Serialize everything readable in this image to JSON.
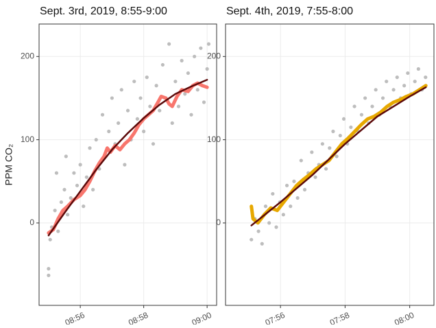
{
  "chart_data": [
    {
      "type": "scatter",
      "title": "Sept. 3rd, 2019, 8:55-9:00",
      "ylabel": "PPM CO₂",
      "xlim": [
        54.7,
        60.3
      ],
      "ylim": [
        -99,
        239
      ],
      "yticks": [
        0,
        100,
        200
      ],
      "xticks": [
        {
          "value": 56,
          "label": "08:56"
        },
        {
          "value": 58,
          "label": "08:58"
        },
        {
          "value": 60,
          "label": "09:00"
        }
      ],
      "grid": true,
      "series": [
        {
          "kind": "points",
          "color": "#bdbdbd",
          "x": [
            55.0,
            55.0,
            55.05,
            55.1,
            55.2,
            55.25,
            55.3,
            55.4,
            55.5,
            55.55,
            55.6,
            55.7,
            55.8,
            55.9,
            56.0,
            56.1,
            56.2,
            56.3,
            56.4,
            56.5,
            56.6,
            56.7,
            56.8,
            56.9,
            57.0,
            57.1,
            57.2,
            57.3,
            57.4,
            57.5,
            57.6,
            57.7,
            57.8,
            57.9,
            58.0,
            58.1,
            58.2,
            58.3,
            58.4,
            58.5,
            58.6,
            58.7,
            58.8,
            58.9,
            59.0,
            59.1,
            59.2,
            59.3,
            59.4,
            59.5,
            59.6,
            59.7,
            59.8,
            59.9,
            60.0,
            60.05
          ],
          "values": [
            -55,
            -63,
            -20,
            -5,
            15,
            60,
            -10,
            25,
            40,
            80,
            10,
            30,
            60,
            45,
            70,
            20,
            55,
            90,
            40,
            100,
            65,
            130,
            80,
            110,
            150,
            95,
            120,
            160,
            70,
            135,
            100,
            170,
            125,
            150,
            110,
            175,
            140,
            95,
            165,
            135,
            190,
            150,
            215,
            120,
            170,
            140,
            195,
            155,
            180,
            130,
            200,
            160,
            210,
            145,
            185,
            215
          ]
        },
        {
          "kind": "line",
          "color": "#f8766d",
          "width": 5,
          "x": [
            55.0,
            55.15,
            55.3,
            55.45,
            55.6,
            55.8,
            56.0,
            56.15,
            56.3,
            56.45,
            56.6,
            56.75,
            56.85,
            56.95,
            57.1,
            57.25,
            57.4,
            57.55,
            57.7,
            57.85,
            58.0,
            58.15,
            58.3,
            58.45,
            58.55,
            58.7,
            58.8,
            58.9,
            59.05,
            59.2,
            59.4,
            59.55,
            59.7,
            59.85,
            60.0
          ],
          "values": [
            -12,
            -8,
            5,
            15,
            20,
            28,
            33,
            40,
            50,
            62,
            72,
            80,
            90,
            85,
            93,
            88,
            95,
            100,
            108,
            118,
            125,
            130,
            135,
            145,
            152,
            150,
            143,
            140,
            152,
            160,
            158,
            165,
            168,
            165,
            163
          ]
        },
        {
          "kind": "line",
          "color": "#5c0a0a",
          "width": 2.5,
          "x": [
            55.0,
            55.5,
            56.0,
            56.5,
            57.0,
            57.5,
            58.0,
            58.5,
            59.0,
            59.5,
            60.0
          ],
          "values": [
            -15,
            12,
            38,
            64,
            88,
            108,
            126,
            142,
            155,
            164,
            172
          ]
        }
      ]
    },
    {
      "type": "scatter",
      "title": "Sept. 4th, 2019, 7:55-8:00",
      "xlim": [
        54.3,
        60.75
      ],
      "ylim": [
        -99,
        239
      ],
      "yticks": [
        0,
        100,
        200
      ],
      "xticks": [
        {
          "value": 56,
          "label": "07:56"
        },
        {
          "value": 58,
          "label": "07:58"
        },
        {
          "value": 60,
          "label": "08:00"
        }
      ],
      "grid": true,
      "series": [
        {
          "kind": "points",
          "color": "#bdbdbd",
          "x": [
            55.1,
            55.21,
            55.32,
            55.43,
            55.54,
            55.65,
            55.76,
            55.87,
            55.98,
            56.09,
            56.2,
            56.31,
            56.42,
            56.53,
            56.64,
            56.75,
            56.86,
            56.97,
            57.08,
            57.19,
            57.3,
            57.41,
            57.52,
            57.63,
            57.74,
            57.85,
            57.96,
            58.07,
            58.18,
            58.29,
            58.4,
            58.51,
            58.62,
            58.73,
            58.84,
            58.95,
            59.06,
            59.17,
            59.28,
            59.39,
            59.5,
            59.61,
            59.72,
            59.83,
            59.94,
            60.05,
            60.16,
            60.27,
            60.38,
            60.49
          ],
          "values": [
            -20,
            5,
            -10,
            -25,
            20,
            0,
            35,
            -5,
            25,
            10,
            45,
            20,
            50,
            30,
            75,
            40,
            60,
            85,
            55,
            70,
            95,
            65,
            90,
            110,
            80,
            105,
            125,
            95,
            115,
            140,
            110,
            130,
            150,
            120,
            140,
            160,
            130,
            150,
            170,
            140,
            160,
            175,
            150,
            165,
            180,
            155,
            170,
            185,
            160,
            175
          ]
        },
        {
          "kind": "line",
          "color": "#e7a800",
          "width": 5,
          "x": [
            55.1,
            55.15,
            55.3,
            55.5,
            55.7,
            55.9,
            56.1,
            56.3,
            56.5,
            56.7,
            56.9,
            57.1,
            57.3,
            57.5,
            57.7,
            57.9,
            58.1,
            58.3,
            58.5,
            58.7,
            58.9,
            59.1,
            59.3,
            59.5,
            59.7,
            59.9,
            60.1,
            60.3,
            60.5
          ],
          "values": [
            20,
            5,
            0,
            10,
            18,
            15,
            25,
            35,
            45,
            52,
            58,
            65,
            70,
            75,
            85,
            95,
            102,
            110,
            118,
            125,
            128,
            133,
            140,
            145,
            148,
            152,
            155,
            160,
            165
          ]
        },
        {
          "kind": "line",
          "color": "#5c0a0a",
          "width": 2.5,
          "x": [
            55.1,
            56.0,
            57.0,
            58.0,
            59.0,
            60.0,
            60.5
          ],
          "values": [
            -3,
            25,
            58,
            95,
            128,
            152,
            163
          ]
        }
      ]
    }
  ]
}
